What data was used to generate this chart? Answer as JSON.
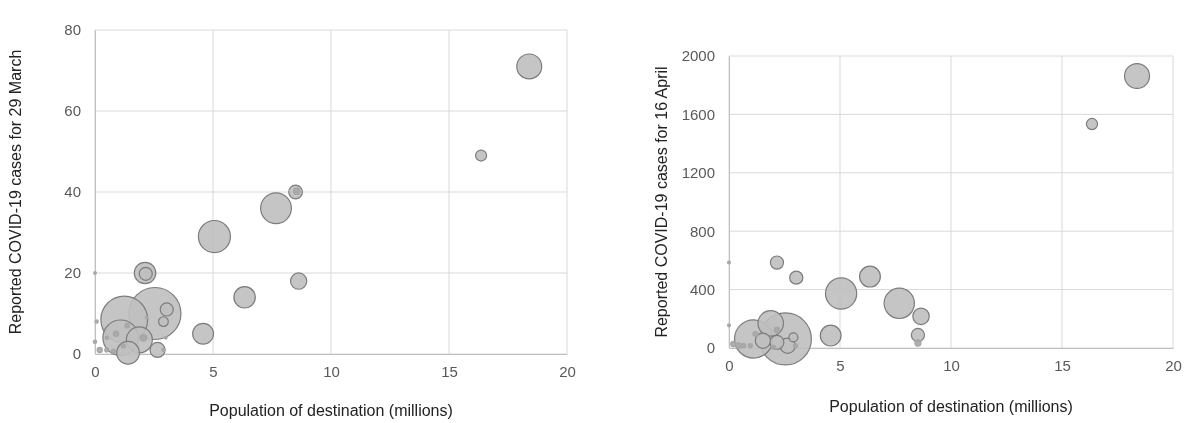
{
  "chart_data": [
    {
      "type": "bubble",
      "xlabel": "Population of destination (millions)",
      "ylabel": "Reported COVID-19 cases for 29 March",
      "xlim": [
        0,
        20
      ],
      "xticks": [
        0,
        5,
        10,
        15,
        20
      ],
      "ylim": [
        0,
        80
      ],
      "yticks": [
        0,
        20,
        40,
        60,
        80
      ],
      "grid": true,
      "series": [
        {
          "colors": [
            "#bfbfbf",
            "#bfbfbf",
            "#bfbfbf",
            "#bfbfbf",
            "#bfbfbf",
            "#bfbfbf",
            "#bfbfbf",
            "#bfbfbf",
            "#bfbfbf",
            "#bfbfbf",
            "#bfbfbf",
            "#bfbfbf",
            "#bfbfbf",
            "#bfbfbf",
            "#bfbfbf",
            "#bfbfbf",
            "#bfbfbf",
            "#bfbfbf",
            "#a6a6a6",
            "#a6a6a6",
            "#a6a6a6",
            "#a6a6a6",
            "#a6a6a6",
            "#a6a6a6",
            "#a6a6a6",
            "#a6a6a6",
            "#a6a6a6",
            "#a6a6a6",
            "#a6a6a6",
            "#a6a6a6",
            "#a6a6a6",
            "#a6a6a6",
            "#a6a6a6"
          ],
          "x": [
            2.54,
            1.24,
            1.09,
            5.06,
            7.67,
            1.88,
            18.4,
            1.4,
            2.12,
            6.34,
            4.58,
            8.63,
            2.65,
            8.5,
            2.15,
            3.04,
            16.36,
            2.9,
            8.55,
            2.05,
            0.89,
            0.2,
            1.37,
            0.5,
            1.2,
            0.78,
            0.07,
            0,
            2.9,
            0.5,
            0,
            2.19,
            3.0
          ],
          "values": [
            10,
            8.5,
            4,
            29,
            36,
            3.5,
            71,
            0.3,
            20,
            14,
            5,
            18,
            1,
            40,
            19.8,
            11,
            49,
            8,
            40.2,
            4,
            5,
            1,
            7,
            1,
            2,
            0.7,
            8,
            3,
            1,
            4,
            20,
            9,
            4
          ],
          "sizes": [
            1,
            0.81,
            0.47,
            0.38,
            0.35,
            0.25,
            0.23,
            0.19,
            0.17,
            0.17,
            0.16,
            0.098,
            0.083,
            0.069,
            0.063,
            0.063,
            0.045,
            0.035,
            0.016,
            0.016,
            0.01,
            0.01,
            0.008,
            0.006,
            0.006,
            0.006,
            0.004,
            0.004,
            0.004,
            0.004,
            0.0025,
            0.0025,
            0.0025
          ]
        }
      ]
    },
    {
      "type": "bubble",
      "xlabel": "Population of destination (millions)",
      "ylabel": "Reported COVID-19 cases for 16 April",
      "xlim": [
        0,
        20
      ],
      "xticks": [
        0,
        5,
        10,
        15,
        20
      ],
      "ylim": [
        0,
        2000
      ],
      "yticks": [
        0,
        400,
        800,
        1200,
        1600,
        2000
      ],
      "grid": true,
      "series": [
        {
          "colors": [
            "#bfbfbf",
            "#bfbfbf",
            "#bfbfbf",
            "#bfbfbf",
            "#bfbfbf",
            "#bfbfbf",
            "#bfbfbf",
            "#bfbfbf",
            "#bfbfbf",
            "#bfbfbf",
            "#bfbfbf",
            "#bfbfbf",
            "#bfbfbf",
            "#bfbfbf",
            "#bfbfbf",
            "#bfbfbf",
            "#bfbfbf",
            "#a6a6a6",
            "#a6a6a6",
            "#a6a6a6",
            "#a6a6a6",
            "#a6a6a6",
            "#a6a6a6",
            "#a6a6a6",
            "#a6a6a6",
            "#a6a6a6",
            "#a6a6a6",
            "#a6a6a6"
          ],
          "x": [
            2.54,
            1.11,
            5.05,
            7.67,
            1.88,
            18.38,
            6.35,
            4.58,
            8.65,
            1.53,
            2.64,
            2.16,
            2.16,
            3.03,
            8.51,
            16.35,
            2.9,
            8.51,
            2.16,
            0.2,
            0.44,
            1.19,
            3.0,
            0.66,
            0.96,
            2.0,
            0,
            0
          ],
          "values": [
            62,
            62,
            373,
            306,
            169,
            1863,
            489,
            85,
            217,
            50,
            16,
            39,
            585,
            482,
            89,
            1534,
            73,
            34,
            123,
            27,
            16,
            96,
            16,
            16,
            16,
            5,
            585,
            155
          ],
          "sizes": [
            1,
            0.54,
            0.36,
            0.34,
            0.24,
            0.23,
            0.16,
            0.16,
            0.1,
            0.086,
            0.086,
            0.071,
            0.064,
            0.064,
            0.064,
            0.046,
            0.03,
            0.014,
            0.011,
            0.011,
            0.011,
            0.009,
            0.006,
            0.006,
            0.006,
            0.006,
            0.003,
            0.003
          ]
        }
      ]
    }
  ]
}
